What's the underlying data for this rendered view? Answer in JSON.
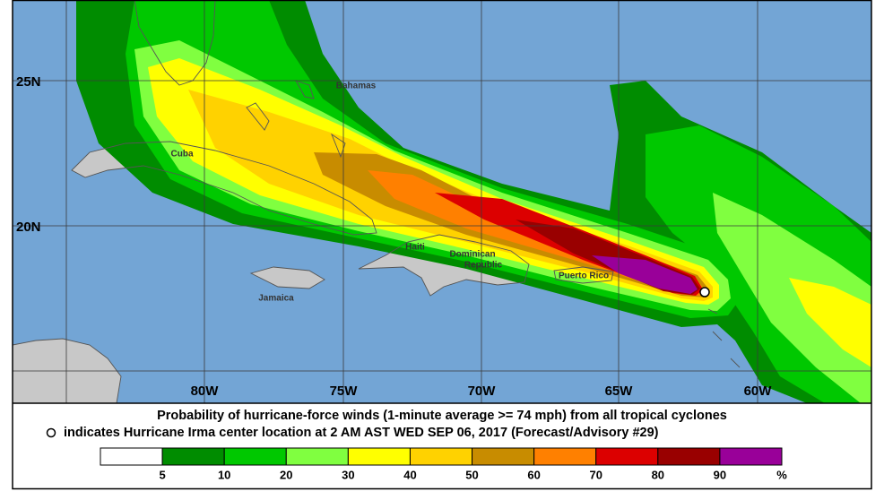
{
  "map": {
    "lat_labels": [
      "25N",
      "20N"
    ],
    "lon_labels": [
      "80W",
      "75W",
      "70W",
      "65W",
      "60W"
    ],
    "places": {
      "bahamas": "Bahamas",
      "cuba": "Cuba",
      "haiti": "Haiti",
      "dominican_1": "Dominican",
      "dominican_2": "Republic",
      "puerto_rico": "Puerto Rico",
      "jamaica": "Jamaica"
    }
  },
  "caption": {
    "line1": "Probability of hurricane-force winds (1-minute average >= 74 mph) from all tropical cyclones",
    "line2": "indicates Hurricane Irma center location at 2 AM AST WED SEP 06, 2017 (Forecast/Advisory #29)"
  },
  "legend": {
    "colors": [
      "#ffffff",
      "#008c00",
      "#00c800",
      "#80ff40",
      "#ffff00",
      "#ffd200",
      "#c88c00",
      "#ff8000",
      "#dc0000",
      "#990000",
      "#990099"
    ],
    "ticks": [
      5,
      10,
      20,
      30,
      40,
      50,
      60,
      70,
      80,
      90
    ],
    "unit": "%"
  }
}
